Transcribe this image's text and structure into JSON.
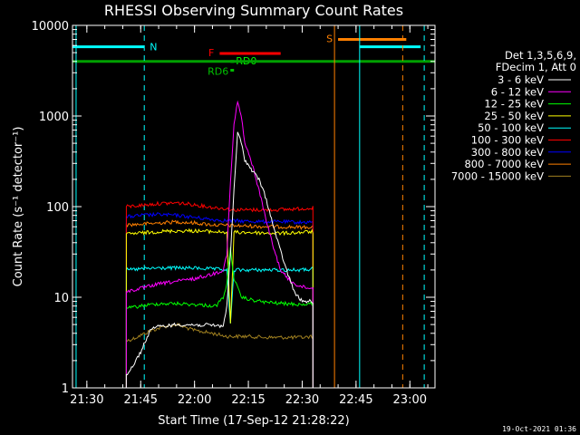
{
  "chart_data": {
    "type": "line",
    "title": "RHESSI Observing Summary Count Rates",
    "xlabel": "Start Time (17-Sep-12 21:28:22)",
    "ylabel": "Count Rate (s⁻¹ detector⁻¹)",
    "xlim": [
      "21:26",
      "23:07"
    ],
    "ylim": [
      1,
      10000
    ],
    "yscale": "log",
    "x_ticks": [
      "21:30",
      "21:45",
      "22:00",
      "22:15",
      "22:30",
      "22:45",
      "23:00"
    ],
    "y_ticks": [
      "1",
      "10",
      "100",
      "1000",
      "10000"
    ],
    "legend_header": [
      "Det 1,3,5,6,9,",
      "FDecim 1, Att 0"
    ],
    "legend_position": "right",
    "timestamp": "19-Oct-2021 01:36",
    "series": [
      {
        "name": "3 - 6 keV",
        "color": "#ffffff",
        "points": [
          [
            "21:41",
            1.4
          ],
          [
            "21:43",
            1.8
          ],
          [
            "21:45",
            2.5
          ],
          [
            "21:48",
            4.6
          ],
          [
            "21:55",
            5.0
          ],
          [
            "22:05",
            4.9
          ],
          [
            "22:08",
            4.8
          ],
          [
            "22:09",
            8
          ],
          [
            "22:10",
            30
          ],
          [
            "22:11",
            150
          ],
          [
            "22:12",
            650
          ],
          [
            "22:13",
            520
          ],
          [
            "22:14",
            330
          ],
          [
            "22:16",
            250
          ],
          [
            "22:18",
            200
          ],
          [
            "22:20",
            120
          ],
          [
            "22:22",
            60
          ],
          [
            "22:24",
            32
          ],
          [
            "22:26",
            18
          ],
          [
            "22:28",
            11
          ],
          [
            "22:30",
            9
          ],
          [
            "22:33",
            9
          ]
        ]
      },
      {
        "name": "6 - 12 keV",
        "color": "#ff00ff",
        "points": [
          [
            "21:41",
            11.5
          ],
          [
            "21:45",
            12.5
          ],
          [
            "21:50",
            14
          ],
          [
            "21:55",
            15
          ],
          [
            "22:00",
            16
          ],
          [
            "22:05",
            18
          ],
          [
            "22:08",
            20
          ],
          [
            "22:09",
            30
          ],
          [
            "22:10",
            180
          ],
          [
            "22:11",
            800
          ],
          [
            "22:12",
            1450
          ],
          [
            "22:13",
            1000
          ],
          [
            "22:14",
            500
          ],
          [
            "22:16",
            300
          ],
          [
            "22:18",
            150
          ],
          [
            "22:20",
            70
          ],
          [
            "22:22",
            35
          ],
          [
            "22:24",
            20
          ],
          [
            "22:26",
            16
          ],
          [
            "22:28",
            14
          ],
          [
            "22:30",
            13
          ],
          [
            "22:33",
            12.5
          ]
        ]
      },
      {
        "name": "12 - 25 keV",
        "color": "#00ff00",
        "points": [
          [
            "21:41",
            7.5
          ],
          [
            "21:45",
            8
          ],
          [
            "21:50",
            8.5
          ],
          [
            "21:55",
            8.5
          ],
          [
            "22:00",
            8.3
          ],
          [
            "22:06",
            8
          ],
          [
            "22:08",
            10
          ],
          [
            "22:09",
            14
          ],
          [
            "22:10",
            35
          ],
          [
            "22:11",
            16
          ],
          [
            "22:13",
            10
          ],
          [
            "22:16",
            9.3
          ],
          [
            "22:20",
            8.8
          ],
          [
            "22:25",
            8.5
          ],
          [
            "22:30",
            8.3
          ],
          [
            "22:33",
            8.5
          ]
        ]
      },
      {
        "name": "25 - 50 keV",
        "color": "#ffff00",
        "points": [
          [
            "21:41",
            50
          ],
          [
            "21:45",
            51
          ],
          [
            "21:50",
            53
          ],
          [
            "21:55",
            54
          ],
          [
            "22:00",
            54
          ],
          [
            "22:05",
            53
          ],
          [
            "22:09",
            52
          ],
          [
            "22:10",
            5
          ],
          [
            "22:11",
            52
          ],
          [
            "22:15",
            52
          ],
          [
            "22:20",
            51
          ],
          [
            "22:25",
            51
          ],
          [
            "22:30",
            52
          ],
          [
            "22:33",
            53
          ]
        ]
      },
      {
        "name": "50 - 100 keV",
        "color": "#00ffff",
        "points": [
          [
            "21:41",
            20
          ],
          [
            "21:45",
            20.5
          ],
          [
            "21:50",
            21
          ],
          [
            "21:55",
            21
          ],
          [
            "22:00",
            21
          ],
          [
            "22:05",
            20.5
          ],
          [
            "22:09",
            20
          ],
          [
            "22:10",
            5
          ],
          [
            "22:11",
            20
          ],
          [
            "22:15",
            20
          ],
          [
            "22:20",
            20
          ],
          [
            "22:25",
            20
          ],
          [
            "22:30",
            20
          ],
          [
            "22:33",
            20.5
          ]
        ]
      },
      {
        "name": "100 - 300 keV",
        "color": "#ff0000",
        "points": [
          [
            "21:41",
            100
          ],
          [
            "21:45",
            103
          ],
          [
            "21:50",
            108
          ],
          [
            "21:55",
            110
          ],
          [
            "22:00",
            105
          ],
          [
            "22:05",
            98
          ],
          [
            "22:09",
            95
          ],
          [
            "22:10",
            92
          ],
          [
            "22:15",
            92
          ],
          [
            "22:20",
            92
          ],
          [
            "22:25",
            93
          ],
          [
            "22:30",
            95
          ],
          [
            "22:33",
            97
          ]
        ]
      },
      {
        "name": "300 - 800 keV",
        "color": "#0000ff",
        "points": [
          [
            "21:41",
            77
          ],
          [
            "21:45",
            80
          ],
          [
            "21:50",
            82
          ],
          [
            "21:55",
            80
          ],
          [
            "22:00",
            76
          ],
          [
            "22:05",
            72
          ],
          [
            "22:09",
            70
          ],
          [
            "22:15",
            69
          ],
          [
            "22:20",
            68
          ],
          [
            "22:25",
            68
          ],
          [
            "22:30",
            67
          ],
          [
            "22:33",
            68
          ]
        ]
      },
      {
        "name": "800 - 7000 keV",
        "color": "#ff8000",
        "points": [
          [
            "21:41",
            63
          ],
          [
            "21:45",
            64
          ],
          [
            "21:50",
            66
          ],
          [
            "21:55",
            68
          ],
          [
            "22:00",
            66
          ],
          [
            "22:05",
            63
          ],
          [
            "22:09",
            62
          ],
          [
            "22:15",
            61
          ],
          [
            "22:20",
            60
          ],
          [
            "22:25",
            60
          ],
          [
            "22:30",
            59
          ],
          [
            "22:33",
            60
          ]
        ]
      },
      {
        "name": "7000 - 15000 keV",
        "color": "#a08020",
        "points": [
          [
            "21:41",
            3.3
          ],
          [
            "21:43",
            3.5
          ],
          [
            "21:48",
            4.3
          ],
          [
            "21:52",
            4.8
          ],
          [
            "21:55",
            5
          ],
          [
            "22:00",
            4.3
          ],
          [
            "22:05",
            4
          ],
          [
            "22:09",
            3.7
          ],
          [
            "22:15",
            3.7
          ],
          [
            "22:20",
            3.6
          ],
          [
            "22:25",
            3.6
          ],
          [
            "22:30",
            3.6
          ],
          [
            "22:33",
            3.7
          ]
        ]
      }
    ],
    "annotations": [
      {
        "label": "N",
        "color": "#00ffff",
        "y": 5800,
        "segments": [
          [
            "21:26",
            "21:46"
          ],
          [
            "22:46",
            "23:03"
          ]
        ]
      },
      {
        "label": "S",
        "color": "#ff8000",
        "y": 7000,
        "segments": [
          [
            "22:40",
            "22:59"
          ]
        ]
      },
      {
        "label": "F",
        "color": "#ff0000",
        "y": 4900,
        "segments": [
          [
            "22:07",
            "22:24"
          ]
        ]
      },
      {
        "label": "RD0",
        "color": "#00ff00",
        "y": 4000,
        "segments": [
          [
            "22:10",
            "22:11"
          ]
        ]
      },
      {
        "label": "RD6",
        "color": "#00c000",
        "y": 3200,
        "segments": [
          [
            "22:10",
            "22:11"
          ]
        ]
      },
      {
        "label": "",
        "color": "#00a000",
        "y": 4000,
        "segments": [
          [
            "21:26",
            "23:07"
          ]
        ]
      }
    ],
    "vlines": [
      {
        "x": "21:27",
        "color": "#00ffff",
        "style": "solid"
      },
      {
        "x": "21:46",
        "color": "#00ffff",
        "style": "dashed"
      },
      {
        "x": "22:39",
        "color": "#ff8000",
        "style": "solid"
      },
      {
        "x": "22:46",
        "color": "#00ffff",
        "style": "solid"
      },
      {
        "x": "22:58",
        "color": "#ff8000",
        "style": "dashed"
      },
      {
        "x": "23:04",
        "color": "#00ffff",
        "style": "dashed"
      }
    ]
  }
}
